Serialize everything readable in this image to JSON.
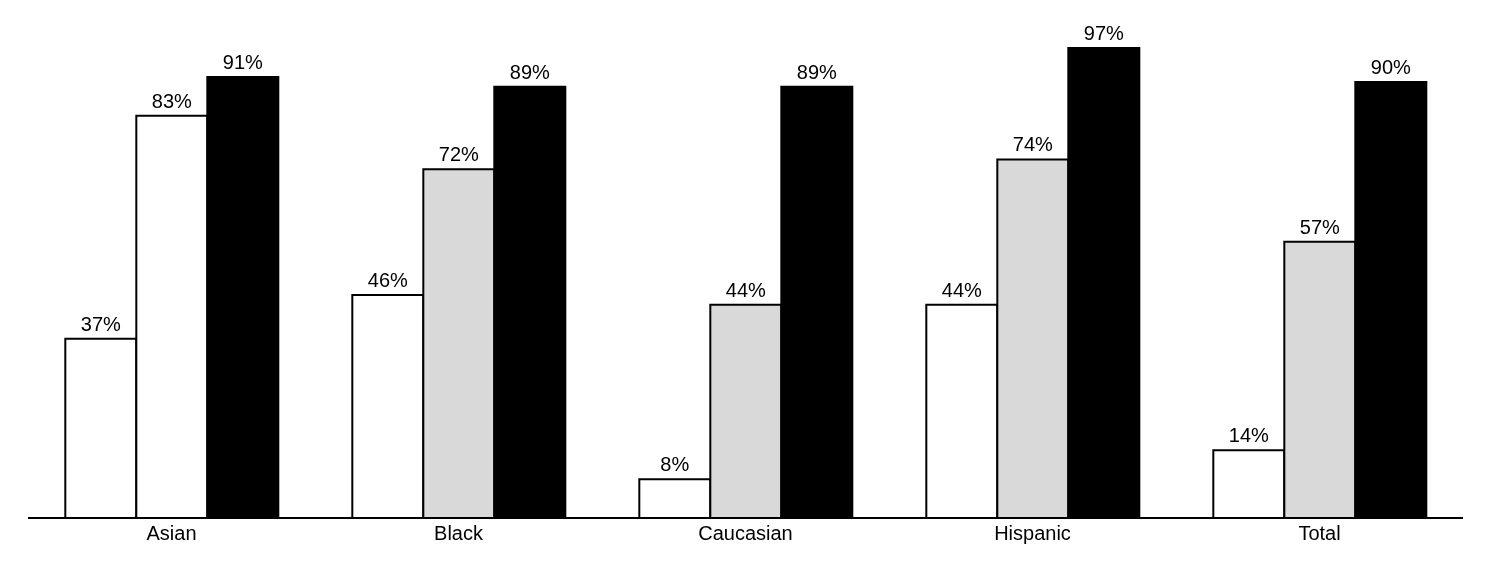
{
  "chart_data": {
    "type": "bar",
    "categories": [
      "Asian",
      "Black",
      "Caucasian",
      "Hispanic",
      "Total"
    ],
    "series": [
      {
        "color": "#ffffff",
        "values": [
          37,
          46,
          8,
          44,
          14
        ],
        "value_labels": [
          "37%",
          "46%",
          "8%",
          "44%",
          "14%"
        ]
      },
      {
        "colors": [
          "#ffffff",
          "#d9d9d9",
          "#d9d9d9",
          "#d9d9d9",
          "#d9d9d9"
        ],
        "values": [
          83,
          72,
          44,
          74,
          57
        ],
        "value_labels": [
          "83%",
          "72%",
          "44%",
          "74%",
          "57%"
        ]
      },
      {
        "color": "#000000",
        "values": [
          91,
          89,
          89,
          97,
          90
        ],
        "value_labels": [
          "91%",
          "89%",
          "89%",
          "97%",
          "90%"
        ]
      }
    ],
    "grid": false,
    "legend": false
  }
}
